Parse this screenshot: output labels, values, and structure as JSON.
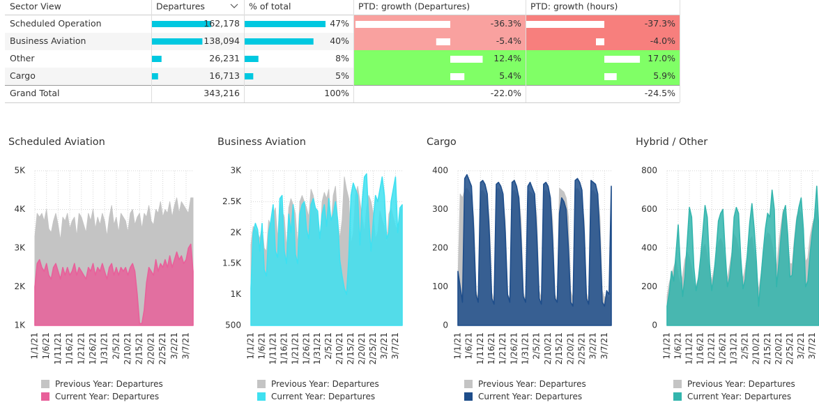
{
  "table": {
    "columns": [
      "Sector View",
      "Departures",
      "% of total",
      "PTD: growth (Departures)",
      "PTD: growth (hours)"
    ],
    "rows": [
      {
        "sector": "Scheduled Operation",
        "departures": {
          "value": 162178,
          "label": "162,178"
        },
        "share": {
          "value": 47,
          "label": "47%"
        },
        "growth_departures": {
          "value": -36.3,
          "label": "-36.3%"
        },
        "growth_hours": {
          "value": -37.3,
          "label": "-37.3%"
        }
      },
      {
        "sector": "Business Aviation",
        "departures": {
          "value": 138094,
          "label": "138,094"
        },
        "share": {
          "value": 40,
          "label": "40%"
        },
        "growth_departures": {
          "value": -5.4,
          "label": "-5.4%"
        },
        "growth_hours": {
          "value": -4.0,
          "label": "-4.0%"
        }
      },
      {
        "sector": "Other",
        "departures": {
          "value": 26231,
          "label": "26,231"
        },
        "share": {
          "value": 8,
          "label": "8%"
        },
        "growth_departures": {
          "value": 12.4,
          "label": "12.4%"
        },
        "growth_hours": {
          "value": 17.0,
          "label": "17.0%"
        }
      },
      {
        "sector": "Cargo",
        "departures": {
          "value": 16713,
          "label": "16,713"
        },
        "share": {
          "value": 5,
          "label": "5%"
        },
        "growth_departures": {
          "value": 5.4,
          "label": "5.4%"
        },
        "growth_hours": {
          "value": 5.9,
          "label": "5.9%"
        }
      }
    ],
    "total": {
      "sector": "Grand Total",
      "departures": {
        "value": 343216,
        "label": "343,216"
      },
      "share": {
        "value": 100,
        "label": "100%"
      },
      "growth_departures": {
        "value": -22.0,
        "label": "-22.0%"
      },
      "growth_hours": {
        "value": -24.5,
        "label": "-24.5%"
      }
    }
  },
  "chart_data": [
    {
      "type": "area",
      "title": "Scheduled Aviation",
      "grid": true,
      "categories": [
        "1/1/21",
        null,
        null,
        null,
        null,
        "1/6/21",
        null,
        null,
        null,
        null,
        "1/11/21",
        null,
        null,
        null,
        null,
        "1/16/21",
        null,
        null,
        null,
        null,
        "1/21/21",
        null,
        null,
        null,
        null,
        "1/26/21",
        null,
        null,
        null,
        null,
        "1/31/21",
        null,
        null,
        null,
        null,
        "2/5/21",
        null,
        null,
        null,
        null,
        "2/10/21",
        null,
        null,
        null,
        null,
        "2/15/21",
        null,
        null,
        null,
        null,
        "2/20/21",
        null,
        null,
        null,
        null,
        "2/25/21",
        null,
        null,
        null,
        null,
        "3/2/21",
        null,
        null,
        null,
        null,
        "3/7/21",
        null,
        null,
        null
      ],
      "ylim": [
        1000,
        5000
      ],
      "yticks": [
        {
          "value": 1000,
          "label": "1K"
        },
        {
          "value": 2000,
          "label": "2K"
        },
        {
          "value": 3000,
          "label": "3K"
        },
        {
          "value": 4000,
          "label": "4K"
        },
        {
          "value": 5000,
          "label": "5K"
        }
      ],
      "series": [
        {
          "name": "Previous Year: Departures",
          "color": "#c4c4c4",
          "values": [
            3300,
            3900,
            3800,
            3900,
            3700,
            4000,
            3500,
            3400,
            3700,
            3900,
            3600,
            3200,
            3800,
            3700,
            3900,
            3500,
            3700,
            3800,
            3300,
            3900,
            3800,
            3600,
            3400,
            3900,
            3700,
            4000,
            3500,
            3800,
            3600,
            3900,
            3700,
            3300,
            3800,
            4100,
            3600,
            3800,
            3400,
            3900,
            3800,
            3700,
            3400,
            3900,
            4000,
            3600,
            3800,
            3900,
            3500,
            3900,
            3800,
            4100,
            3700,
            3600,
            4000,
            3900,
            4200,
            3800,
            4000,
            3900,
            4200,
            3800,
            4100,
            4300,
            3900,
            4200,
            4100,
            4000,
            3900,
            4300,
            4300
          ]
        },
        {
          "name": "Current Year: Departures",
          "color": "#e8609a",
          "values": [
            2000,
            2600,
            2700,
            2500,
            2400,
            2600,
            2300,
            2200,
            2500,
            2600,
            2400,
            2200,
            2500,
            2300,
            2500,
            2300,
            2400,
            2600,
            2300,
            2500,
            2400,
            2300,
            2200,
            2500,
            2400,
            2600,
            2300,
            2500,
            2400,
            2600,
            2400,
            2200,
            2500,
            2600,
            2300,
            2500,
            2300,
            2500,
            2400,
            2500,
            2300,
            2500,
            2600,
            2400,
            1800,
            1050,
            1050,
            1400,
            2100,
            2500,
            2400,
            2300,
            2700,
            2400,
            2600,
            2500,
            2700,
            2500,
            2800,
            2500,
            2700,
            2900,
            2700,
            2800,
            2600,
            2700,
            3000,
            3100,
            2400
          ]
        }
      ]
    },
    {
      "type": "area",
      "title": "Business Aviation",
      "grid": true,
      "categories": [
        "1/1/21",
        null,
        null,
        null,
        null,
        "1/6/21",
        null,
        null,
        null,
        null,
        "1/11/21",
        null,
        null,
        null,
        null,
        "1/16/21",
        null,
        null,
        null,
        null,
        "1/21/21",
        null,
        null,
        null,
        null,
        "1/26/21",
        null,
        null,
        null,
        null,
        "1/31/21",
        null,
        null,
        null,
        null,
        "2/5/21",
        null,
        null,
        null,
        null,
        "2/10/21",
        null,
        null,
        null,
        null,
        "2/15/21",
        null,
        null,
        null,
        null,
        "2/20/21",
        null,
        null,
        null,
        null,
        "2/25/21",
        null,
        null,
        null,
        null,
        "3/2/21",
        null,
        null,
        null,
        null,
        "3/7/21",
        null,
        null,
        null
      ],
      "ylim": [
        500,
        3000
      ],
      "yticks": [
        500,
        {
          "value": 1000,
          "label": "1K"
        },
        {
          "value": 1500,
          "label": "1.5K"
        },
        {
          "value": 2000,
          "label": "2K"
        },
        {
          "value": 2500,
          "label": "2.5K"
        },
        {
          "value": 3000,
          "label": "3K"
        }
      ],
      "series": [
        {
          "name": "Previous Year: Departures",
          "color": "#c4c4c4",
          "values": [
            1800,
            2100,
            2050,
            2000,
            1900,
            2100,
            1750,
            1700,
            2200,
            2100,
            2300,
            2400,
            1900,
            2500,
            2350,
            2250,
            1750,
            2400,
            2550,
            2450,
            2300,
            1800,
            2500,
            2600,
            2500,
            2400,
            2250,
            2700,
            2600,
            2400,
            2250,
            1800,
            2500,
            2650,
            2550,
            2700,
            2100,
            2600,
            2750,
            2200,
            1900,
            2200,
            2900,
            2700,
            2550,
            1800,
            2000,
            2600,
            2750,
            2500,
            2250,
            2000,
            2400,
            2600,
            2500,
            2300,
            1900,
            2000,
            2350,
            2200,
            2100,
            1800,
            2300,
            2400,
            2250,
            2100,
            2050,
            2350,
            2400
          ]
        },
        {
          "name": "Current Year: Departures",
          "color": "#3fe0f0",
          "values": [
            1100,
            2000,
            2150,
            2050,
            1700,
            2150,
            1400,
            1300,
            2000,
            2200,
            2450,
            1700,
            1600,
            2550,
            2600,
            1700,
            1500,
            2300,
            2000,
            2450,
            1650,
            1500,
            2300,
            2450,
            2500,
            2050,
            1900,
            2450,
            2550,
            2400,
            2350,
            1900,
            2300,
            2450,
            2100,
            2550,
            2200,
            2300,
            2500,
            2200,
            1550,
            1300,
            1100,
            1000,
            1600,
            2600,
            2800,
            2700,
            2600,
            1800,
            2500,
            2900,
            2950,
            2200,
            1700,
            2200,
            2600,
            2500,
            2700,
            2900,
            2600,
            1900,
            2000,
            2500,
            2700,
            2900,
            2000,
            2400,
            2450
          ]
        }
      ]
    },
    {
      "type": "area",
      "title": "Cargo",
      "grid": true,
      "categories": [
        "1/1/21",
        null,
        null,
        null,
        null,
        "1/6/21",
        null,
        null,
        null,
        null,
        "1/11/21",
        null,
        null,
        null,
        null,
        "1/16/21",
        null,
        null,
        null,
        null,
        "1/21/21",
        null,
        null,
        null,
        null,
        "1/26/21",
        null,
        null,
        null,
        null,
        "1/31/21",
        null,
        null,
        null,
        null,
        "2/5/21",
        null,
        null,
        null,
        null,
        "2/10/21",
        null,
        null,
        null,
        null,
        "2/15/21",
        null,
        null,
        null,
        null,
        "2/20/21",
        null,
        null,
        null,
        null,
        "2/25/21",
        null,
        null,
        null,
        null,
        "3/2/21",
        null,
        null,
        null,
        null,
        "3/7/21",
        null,
        null,
        null
      ],
      "ylim": [
        0,
        400
      ],
      "yticks": [
        0,
        100,
        200,
        300,
        400
      ],
      "series": [
        {
          "name": "Previous Year: Departures",
          "color": "#c4c4c4",
          "values": [
            120,
            340,
            330,
            350,
            355,
            345,
            335,
            280,
            90,
            70,
            345,
            350,
            340,
            330,
            270,
            85,
            65,
            350,
            355,
            345,
            330,
            270,
            80,
            70,
            345,
            350,
            340,
            335,
            275,
            85,
            65,
            350,
            345,
            340,
            330,
            280,
            90,
            70,
            345,
            350,
            340,
            330,
            270,
            80,
            65,
            355,
            350,
            345,
            330,
            280,
            90,
            70,
            350,
            355,
            345,
            330,
            270,
            85,
            65,
            345,
            350,
            340,
            335,
            280,
            90,
            70,
            80,
            70,
            90
          ]
        },
        {
          "name": "Current Year: Departures",
          "color": "#1e4d8a",
          "values": [
            140,
            100,
            60,
            380,
            390,
            375,
            360,
            250,
            80,
            60,
            370,
            375,
            365,
            340,
            230,
            70,
            55,
            365,
            370,
            360,
            340,
            240,
            80,
            60,
            370,
            375,
            360,
            330,
            220,
            75,
            60,
            360,
            370,
            355,
            340,
            230,
            70,
            55,
            365,
            370,
            360,
            330,
            220,
            70,
            60,
            290,
            330,
            320,
            300,
            200,
            60,
            50,
            375,
            380,
            370,
            350,
            240,
            70,
            55,
            375,
            370,
            365,
            340,
            220,
            60,
            50,
            90,
            80,
            360
          ]
        }
      ]
    },
    {
      "type": "area",
      "title": "Hybrid / Other",
      "grid": true,
      "categories": [
        "1/1/21",
        null,
        null,
        null,
        null,
        "1/6/21",
        null,
        null,
        null,
        null,
        "1/11/21",
        null,
        null,
        null,
        null,
        "1/16/21",
        null,
        null,
        null,
        null,
        "1/21/21",
        null,
        null,
        null,
        null,
        "1/26/21",
        null,
        null,
        null,
        null,
        "1/31/21",
        null,
        null,
        null,
        null,
        "2/5/21",
        null,
        null,
        null,
        null,
        "2/10/21",
        null,
        null,
        null,
        null,
        "2/15/21",
        null,
        null,
        null,
        null,
        "2/20/21",
        null,
        null,
        null,
        null,
        "2/25/21",
        null,
        null,
        null,
        null,
        "3/2/21",
        null,
        null,
        null,
        null,
        "3/7/21",
        null,
        null,
        null
      ],
      "ylim": [
        0,
        800
      ],
      "yticks": [
        0,
        200,
        400,
        600,
        800
      ],
      "series": [
        {
          "name": "Previous Year: Departures",
          "color": "#c4c4c4",
          "values": [
            150,
            220,
            260,
            300,
            340,
            260,
            210,
            260,
            340,
            380,
            350,
            300,
            220,
            200,
            250,
            330,
            400,
            420,
            360,
            280,
            230,
            290,
            360,
            430,
            450,
            420,
            320,
            240,
            310,
            380,
            470,
            450,
            400,
            310,
            240,
            300,
            370,
            440,
            460,
            380,
            300,
            180,
            260,
            370,
            450,
            480,
            470,
            420,
            360,
            300,
            420,
            520,
            600,
            560,
            440,
            320,
            320,
            450,
            560,
            600,
            580,
            460,
            330,
            350,
            460,
            520,
            560,
            600,
            500
          ]
        },
        {
          "name": "Current Year: Departures",
          "color": "#33b5ad",
          "values": [
            100,
            170,
            280,
            230,
            370,
            520,
            300,
            150,
            250,
            430,
            610,
            560,
            300,
            180,
            240,
            350,
            480,
            620,
            560,
            320,
            180,
            260,
            390,
            540,
            580,
            600,
            380,
            200,
            250,
            360,
            560,
            610,
            580,
            350,
            190,
            240,
            380,
            530,
            630,
            500,
            330,
            100,
            240,
            380,
            500,
            580,
            560,
            700,
            600,
            200,
            320,
            460,
            580,
            620,
            470,
            250,
            260,
            420,
            540,
            610,
            660,
            500,
            200,
            230,
            370,
            480,
            560,
            720,
            480
          ]
        }
      ]
    }
  ]
}
